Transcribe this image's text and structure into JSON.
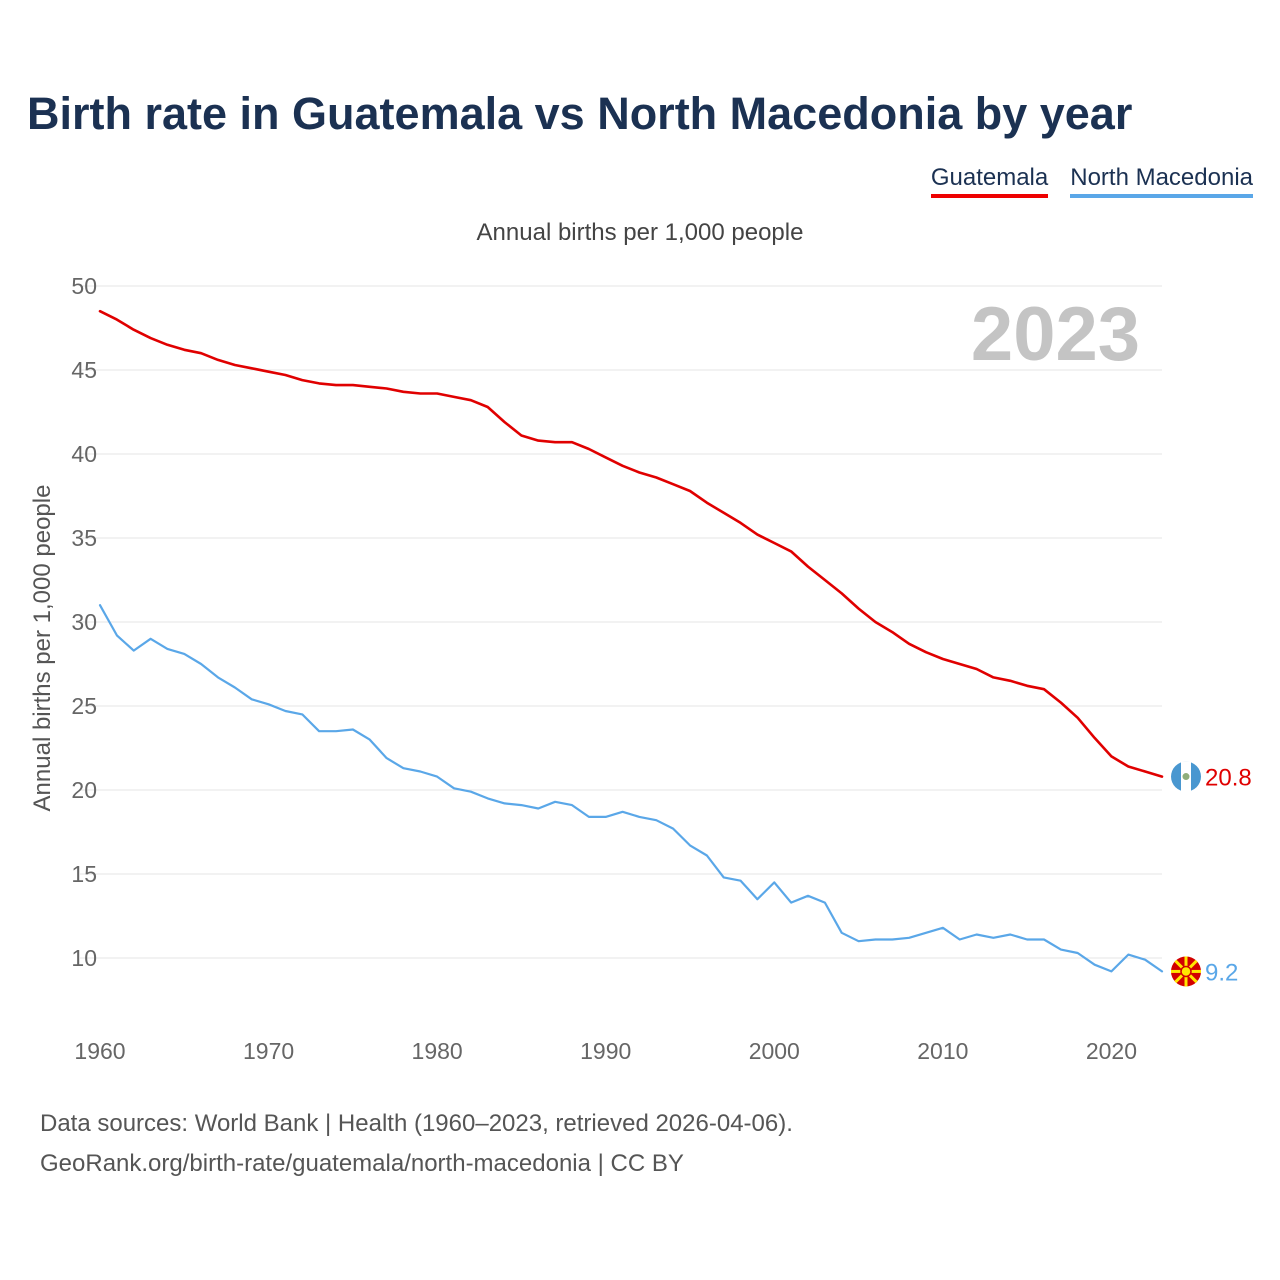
{
  "title": "Birth rate in Guatemala vs North Macedonia by year",
  "subtitle": "Annual births per 1,000 people",
  "year_watermark": "2023",
  "footer": {
    "line1": "Data sources: World Bank | Health (1960–2023, retrieved 2026-04-06).",
    "line2": "GeoRank.org/birth-rate/guatemala/north-macedonia | CC BY"
  },
  "chart_data": {
    "type": "line",
    "title": "Birth rate in Guatemala vs North Macedonia by year",
    "subtitle": "Annual births per 1,000 people",
    "xlabel": "",
    "ylabel": "Annual births per 1,000 people",
    "xlim": [
      1960,
      2023
    ],
    "ylim": [
      6.5,
      50
    ],
    "x_ticks": [
      1960,
      1970,
      1980,
      1990,
      2000,
      2010,
      2020
    ],
    "y_ticks": [
      10,
      15,
      20,
      25,
      30,
      35,
      40,
      45,
      50
    ],
    "grid": true,
    "legend": "top-right",
    "x": [
      1960,
      1961,
      1962,
      1963,
      1964,
      1965,
      1966,
      1967,
      1968,
      1969,
      1970,
      1971,
      1972,
      1973,
      1974,
      1975,
      1976,
      1977,
      1978,
      1979,
      1980,
      1981,
      1982,
      1983,
      1984,
      1985,
      1986,
      1987,
      1988,
      1989,
      1990,
      1991,
      1992,
      1993,
      1994,
      1995,
      1996,
      1997,
      1998,
      1999,
      2000,
      2001,
      2002,
      2003,
      2004,
      2005,
      2006,
      2007,
      2008,
      2009,
      2010,
      2011,
      2012,
      2013,
      2014,
      2015,
      2016,
      2017,
      2018,
      2019,
      2020,
      2021,
      2022,
      2023
    ],
    "series": [
      {
        "name": "Guatemala",
        "color": "#e00000",
        "end_label": "20.8",
        "values": [
          48.5,
          48.0,
          47.4,
          46.9,
          46.5,
          46.2,
          46.0,
          45.6,
          45.3,
          45.1,
          44.9,
          44.7,
          44.4,
          44.2,
          44.1,
          44.1,
          44.0,
          43.9,
          43.7,
          43.6,
          43.6,
          43.4,
          43.2,
          42.8,
          41.9,
          41.1,
          40.8,
          40.7,
          40.7,
          40.3,
          39.8,
          39.3,
          38.9,
          38.6,
          38.2,
          37.8,
          37.1,
          36.5,
          35.9,
          35.2,
          34.7,
          34.2,
          33.3,
          32.5,
          31.7,
          30.8,
          30.0,
          29.4,
          28.7,
          28.2,
          27.8,
          27.5,
          27.2,
          26.7,
          26.5,
          26.2,
          26.0,
          25.2,
          24.3,
          23.1,
          22.0,
          21.4,
          21.1,
          20.8
        ]
      },
      {
        "name": "North Macedonia",
        "color": "#5aa7e8",
        "end_label": "9.2",
        "values": [
          31.0,
          29.2,
          28.3,
          29.0,
          28.4,
          28.1,
          27.5,
          26.7,
          26.1,
          25.4,
          25.1,
          24.7,
          24.5,
          23.5,
          23.5,
          23.6,
          23.0,
          21.9,
          21.3,
          21.1,
          20.8,
          20.1,
          19.9,
          19.5,
          19.2,
          19.1,
          18.9,
          19.3,
          19.1,
          18.4,
          18.4,
          18.7,
          18.4,
          18.2,
          17.7,
          16.7,
          16.1,
          14.8,
          14.6,
          13.5,
          14.5,
          13.3,
          13.7,
          13.3,
          11.5,
          11.0,
          11.1,
          11.1,
          11.2,
          11.5,
          11.8,
          11.1,
          11.4,
          11.2,
          11.4,
          11.1,
          11.1,
          10.5,
          10.3,
          9.6,
          9.2,
          10.2,
          9.9,
          9.2
        ]
      }
    ]
  }
}
